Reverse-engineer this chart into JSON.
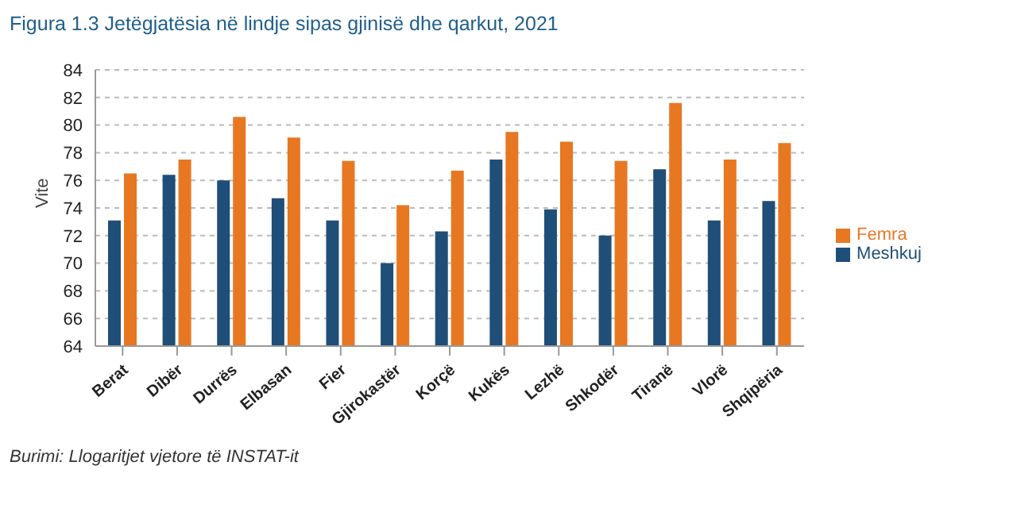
{
  "chart_data": {
    "type": "bar",
    "title": "Figura 1.3 Jetëgjatësia në lindje sipas gjinisë dhe qarkut, 2021",
    "ylabel": "Vite",
    "categories": [
      "Berat",
      "Dibër",
      "Durrës",
      "Elbasan",
      "Fier",
      "Gjirokastër",
      "Korçë",
      "Kukës",
      "Lezhë",
      "Shkodër",
      "Tiranë",
      "Vlorë",
      "Shqipëria"
    ],
    "series": [
      {
        "name": "Meshkuj",
        "color": "#1f4e79",
        "values": [
          73.1,
          76.4,
          76.0,
          74.7,
          73.1,
          70.0,
          72.3,
          77.5,
          73.9,
          72.0,
          76.8,
          73.1,
          74.5
        ]
      },
      {
        "name": "Femra",
        "color": "#e87722",
        "values": [
          76.5,
          77.5,
          80.6,
          79.1,
          77.4,
          74.2,
          76.7,
          79.5,
          78.8,
          77.4,
          81.6,
          77.5,
          78.7
        ]
      }
    ],
    "ylim": [
      64,
      84
    ],
    "yticks": [
      64,
      66,
      68,
      70,
      72,
      74,
      76,
      78,
      80,
      82,
      84
    ],
    "grid": "y",
    "legend": "right",
    "annotations": [
      "Burimi: Llogaritjet vjetore të INSTAT-it"
    ]
  }
}
